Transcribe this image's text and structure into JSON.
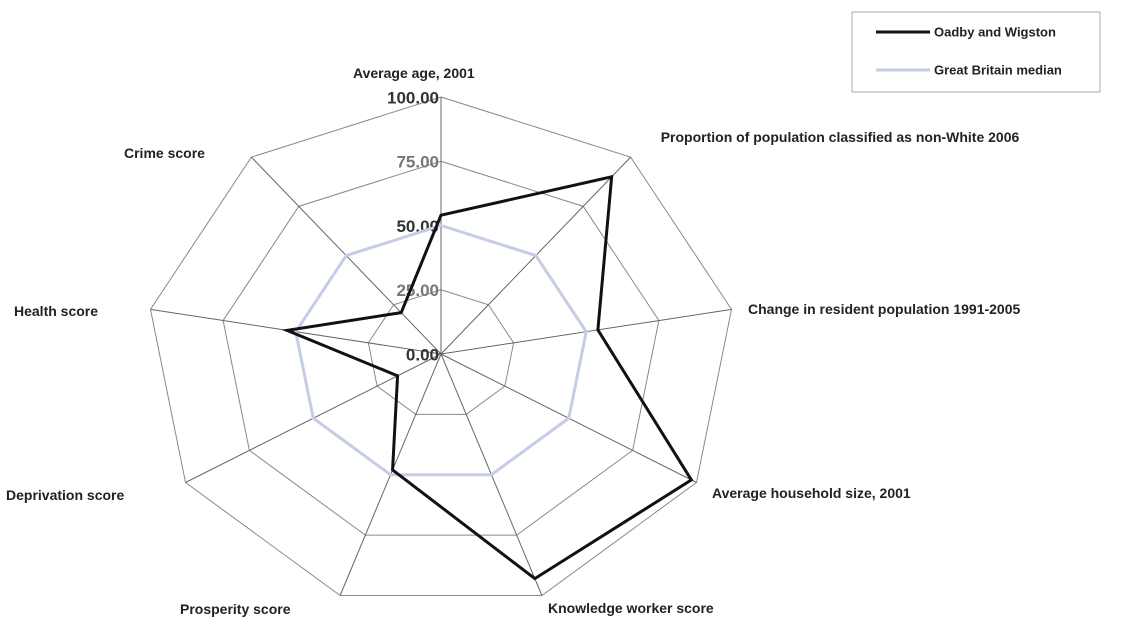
{
  "chart_data": {
    "type": "radar",
    "categories": [
      "Average age, 2001",
      "Proportion of population classified as non-White 2006",
      "Change in resident population 1991-2005",
      "Average household size, 2001",
      "Knowledge worker score",
      "Prosperity score",
      "Deprivation score",
      "Health score",
      "Crime score"
    ],
    "series": [
      {
        "name": "Oadby and Wigston",
        "color": "#111111",
        "values": [
          54,
          90,
          54,
          98,
          93,
          48,
          17,
          53,
          21
        ]
      },
      {
        "name": "Great Britain median",
        "color": "#c5cde6",
        "values": [
          50,
          50,
          50,
          50,
          50,
          50,
          50,
          50,
          50
        ]
      }
    ],
    "ylim": [
      0,
      100
    ],
    "yticks": [
      {
        "value": 0,
        "label": "0.00"
      },
      {
        "value": 25,
        "label": "25.00"
      },
      {
        "value": 50,
        "label": "50.00"
      },
      {
        "value": 75,
        "label": "75.00"
      },
      {
        "value": 100,
        "label": "100.00"
      }
    ],
    "grid": true,
    "legend": "top-right"
  }
}
